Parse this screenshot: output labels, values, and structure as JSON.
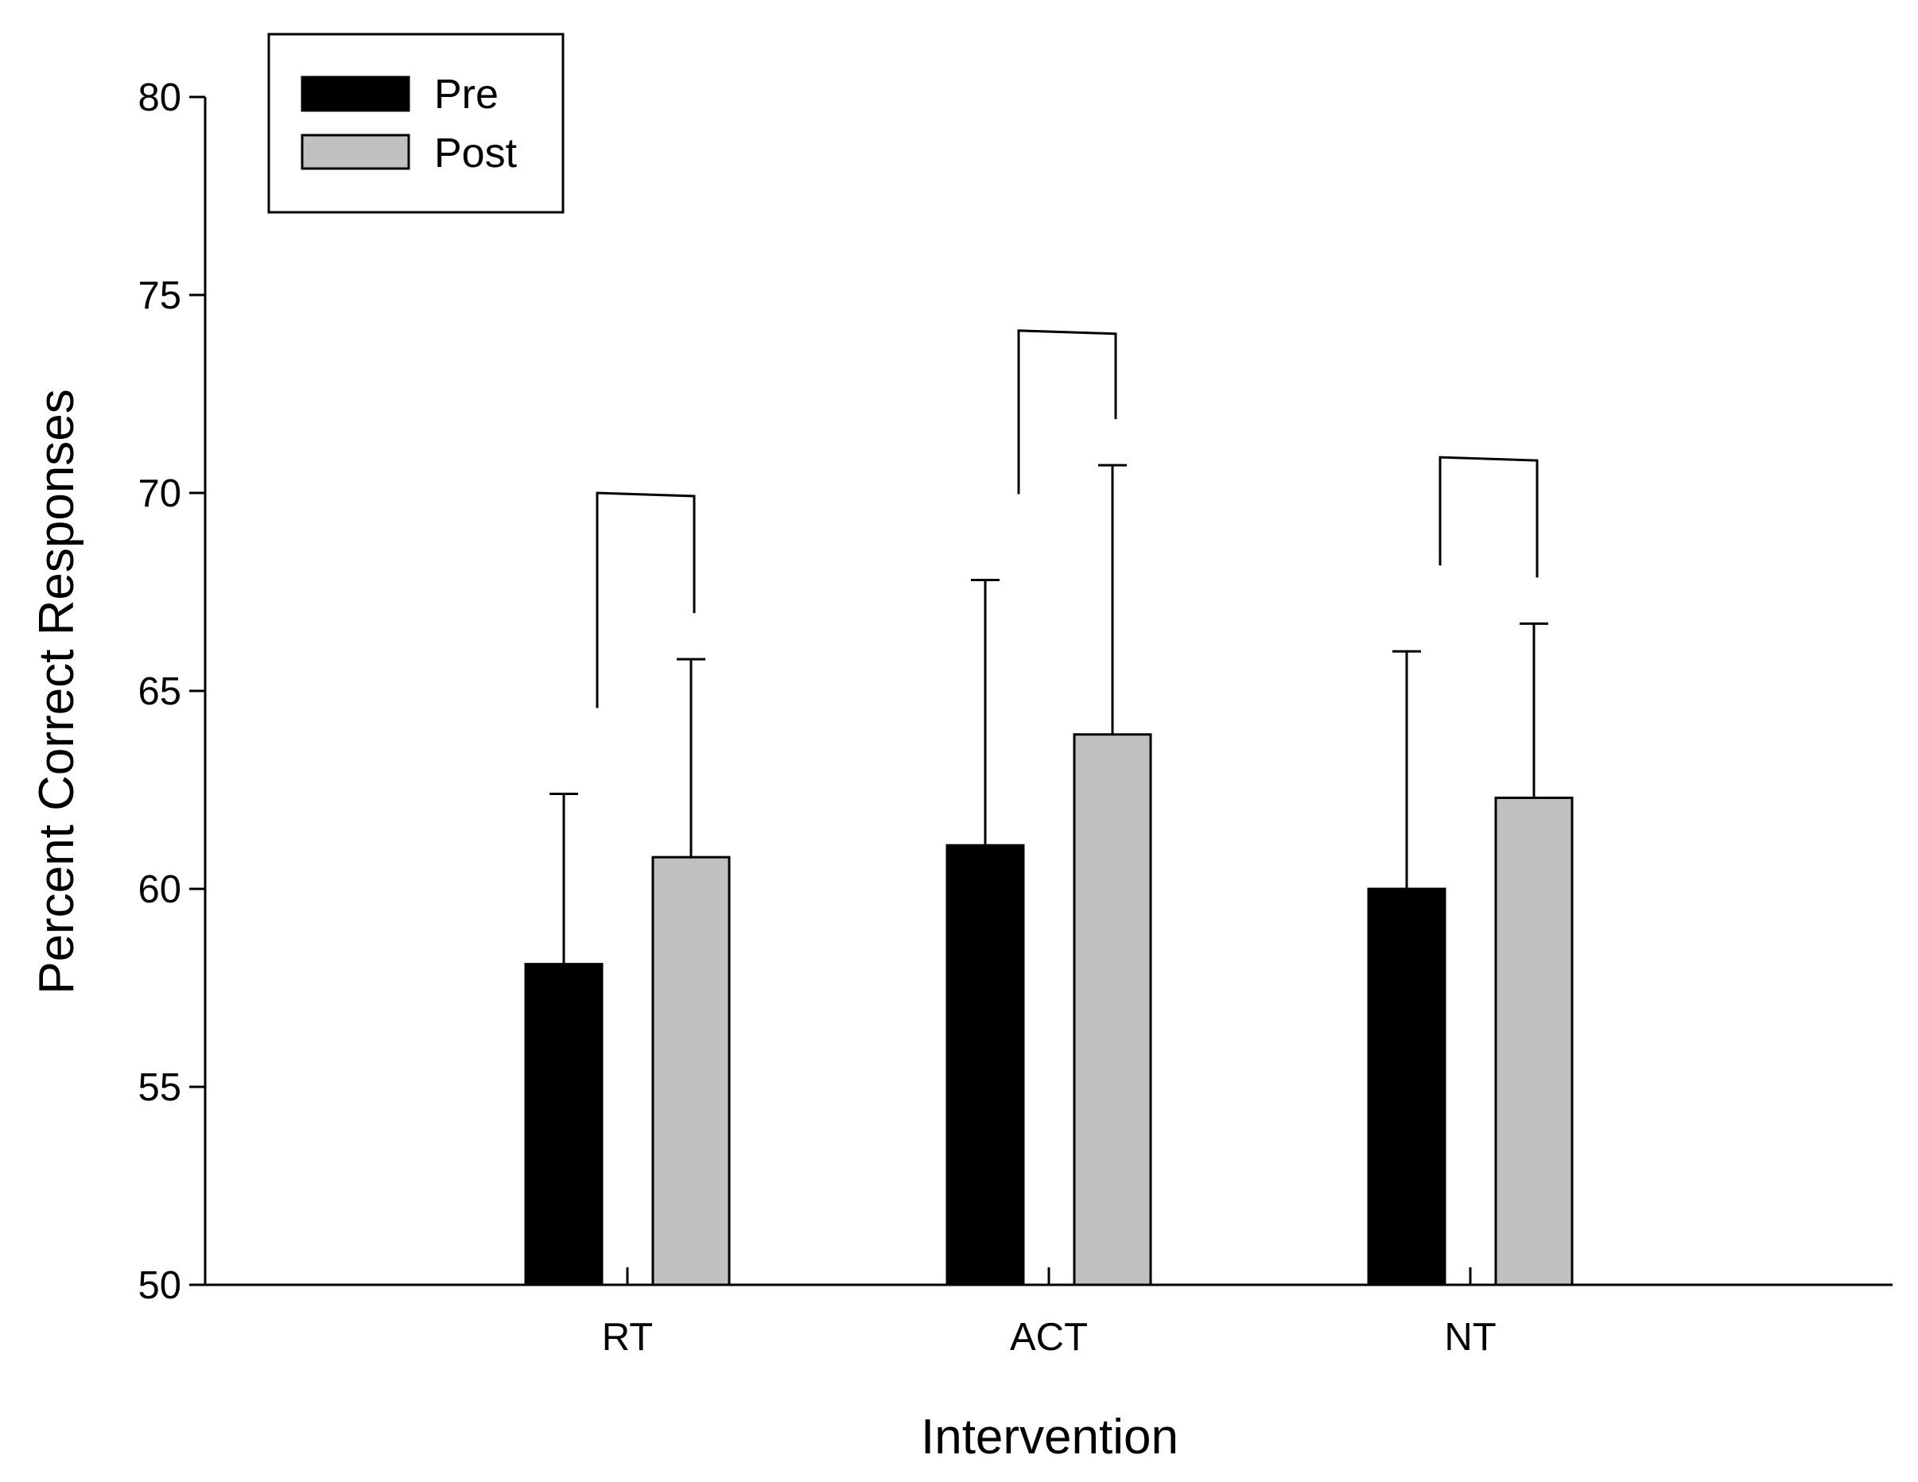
{
  "chart_data": {
    "type": "bar",
    "title": "",
    "xlabel": "Intervention",
    "ylabel": "Percent Correct Responses",
    "ylim": [
      50,
      80
    ],
    "yticks": [
      50,
      55,
      60,
      65,
      70,
      75,
      80
    ],
    "categories": [
      "RT",
      "ACT",
      "NT"
    ],
    "series": [
      {
        "name": "Pre",
        "values": [
          58.1,
          61.1,
          60.0
        ],
        "error": [
          4.3,
          6.7,
          6.0
        ],
        "color": "#000000"
      },
      {
        "name": "Post",
        "values": [
          60.8,
          63.9,
          62.3
        ],
        "error": [
          5.0,
          6.8,
          4.4
        ],
        "color": "#c0c0c0"
      }
    ],
    "brackets": [
      {
        "category": "RT",
        "level": 70.0
      },
      {
        "category": "ACT",
        "level": 74.1
      },
      {
        "category": "NT",
        "level": 70.9
      }
    ],
    "legend_position": "top-left",
    "grid": false
  }
}
